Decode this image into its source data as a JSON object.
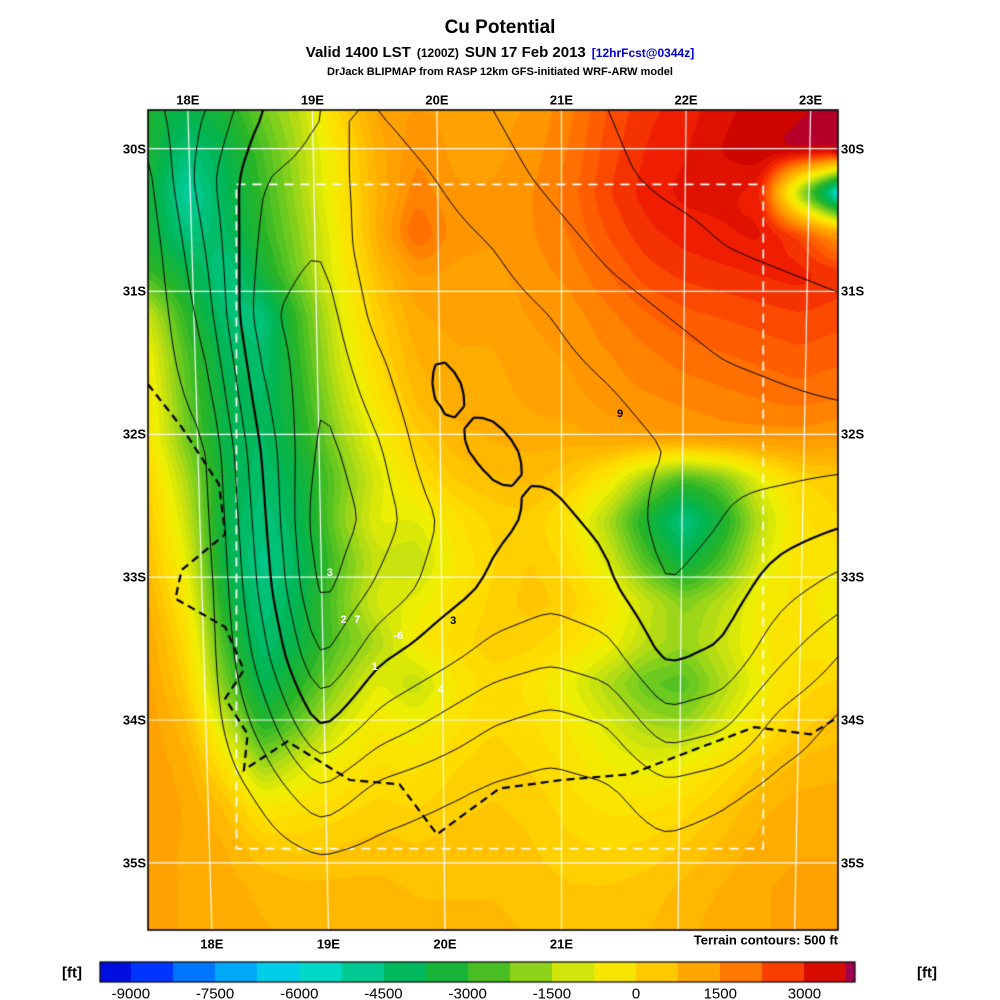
{
  "header": {
    "title": "Cu Potential",
    "valid_prefix": "Valid 1400 LST",
    "valid_zulu": "(1200Z)",
    "valid_date": "SUN 17 Feb 2013",
    "fcst_tag": "[12hrFcst@0344z]",
    "model_line": "DrJack BLIPMAP from RASP 12km GFS-initiated WRF-ARW model"
  },
  "colors": {
    "fcst_tag": "#0000CC",
    "contour": "#000000",
    "graticule": "#FFFFFF"
  },
  "chart_data": {
    "type": "heatmap",
    "title": "Cu Potential",
    "units": "ft",
    "lon_range": [
      17.68,
      23.22
    ],
    "lat_range": [
      -35.47,
      -29.73
    ],
    "x_ticks_top": {
      "lons": [
        18,
        19,
        20,
        21,
        22,
        23
      ],
      "labels": [
        "18E",
        "19E",
        "20E",
        "21E",
        "22E",
        "23E"
      ]
    },
    "x_ticks_bottom": {
      "lons": [
        18,
        19,
        20,
        21
      ],
      "labels": [
        "18E",
        "19E",
        "20E",
        "21E"
      ]
    },
    "y_ticks": {
      "lats": [
        -30,
        -31,
        -32,
        -33,
        -34,
        -35
      ],
      "labels": [
        "30S",
        "31S",
        "32S",
        "33S",
        "34S",
        "35S"
      ]
    },
    "domain_box": {
      "lon": [
        18.39,
        22.62
      ],
      "lat": [
        -34.9,
        -30.25
      ]
    },
    "terrain_note": "Terrain contours: 500 ft",
    "grid": {
      "values": [
        [
          -3300,
          -3800,
          -3300,
          -2200,
          -1300,
          200,
          1200,
          1400,
          1300,
          1300,
          1400,
          1800,
          2400,
          2800,
          3000,
          3300,
          3500,
          3600,
          3700
        ],
        [
          -3300,
          -4500,
          -3800,
          -2600,
          -1500,
          -200,
          1000,
          1600,
          1300,
          1300,
          1500,
          1900,
          2500,
          2900,
          3100,
          3400,
          3600,
          3700,
          3700
        ],
        [
          -3400,
          -5200,
          -4000,
          -2800,
          -1600,
          -300,
          900,
          1800,
          1400,
          1400,
          1600,
          2000,
          2600,
          3000,
          3200,
          3200,
          3000,
          -2000,
          -6300
        ],
        [
          -3400,
          -4600,
          -4200,
          -3000,
          -1800,
          -500,
          1000,
          2200,
          1500,
          1400,
          1600,
          1900,
          2400,
          2800,
          3000,
          3100,
          3200,
          2600,
          1400
        ],
        [
          -2800,
          -3600,
          -4800,
          -3400,
          -2000,
          -600,
          600,
          1400,
          1300,
          1300,
          1500,
          1700,
          2100,
          2500,
          2700,
          2800,
          2900,
          3000,
          2800
        ],
        [
          -1200,
          -3000,
          -4400,
          -4600,
          -2600,
          -900,
          300,
          1100,
          1200,
          1200,
          1400,
          1500,
          1800,
          2100,
          2300,
          2400,
          2500,
          2600,
          2500
        ],
        [
          -600,
          -2600,
          -4000,
          -4400,
          -2800,
          -1100,
          100,
          900,
          1100,
          1100,
          1300,
          1400,
          1600,
          1800,
          2000,
          2100,
          2200,
          2300,
          2200
        ],
        [
          -400,
          -2400,
          -3800,
          -4200,
          -3000,
          -1400,
          -200,
          700,
          1000,
          1000,
          1200,
          1300,
          1500,
          1600,
          1700,
          1800,
          1900,
          2000,
          1900
        ],
        [
          -300,
          -2200,
          -3800,
          -4200,
          -3200,
          -1800,
          -600,
          300,
          800,
          900,
          1000,
          1000,
          1200,
          1300,
          1400,
          1500,
          1500,
          1500,
          1400
        ],
        [
          200,
          -1600,
          -3600,
          -4400,
          -3600,
          -2200,
          -1000,
          -200,
          400,
          600,
          700,
          400,
          -400,
          -1800,
          -2800,
          -2200,
          -800,
          100,
          300
        ],
        [
          400,
          -1200,
          -3800,
          -4600,
          -3800,
          -2000,
          -800,
          -900,
          -200,
          200,
          300,
          -300,
          -1600,
          -3400,
          -4800,
          -3400,
          -1400,
          -200,
          100
        ],
        [
          600,
          -800,
          -3800,
          -4800,
          -4000,
          -2400,
          -1200,
          -1400,
          -400,
          100,
          400,
          0,
          -1000,
          -2600,
          -3800,
          -2600,
          -1000,
          -200,
          -400
        ],
        [
          900,
          -400,
          -3400,
          -4600,
          -3800,
          -2200,
          -1000,
          -800,
          -200,
          200,
          500,
          300,
          -300,
          -1200,
          -2000,
          -1400,
          -500,
          -300,
          -500
        ],
        [
          1100,
          0,
          -2800,
          -4400,
          -3600,
          -2400,
          -1600,
          -400,
          0,
          300,
          200,
          -100,
          -600,
          -1400,
          -1800,
          -1200,
          -400,
          -200,
          -400
        ],
        [
          1200,
          300,
          -2200,
          -4000,
          -3000,
          -1800,
          -800,
          -1400,
          -400,
          0,
          -200,
          -800,
          -1600,
          -2400,
          -2600,
          -1600,
          -600,
          0,
          200
        ],
        [
          1300,
          700,
          -1200,
          -3200,
          -2200,
          -1000,
          -400,
          -600,
          -200,
          100,
          -100,
          -400,
          -1000,
          -1600,
          -1800,
          -1000,
          -200,
          300,
          500
        ],
        [
          1300,
          1000,
          -200,
          -1800,
          -1000,
          -400,
          -100,
          -200,
          100,
          300,
          100,
          -200,
          -600,
          -800,
          -600,
          -100,
          400,
          700,
          800
        ],
        [
          1300,
          1100,
          600,
          -400,
          -200,
          0,
          200,
          100,
          300,
          400,
          300,
          0,
          -200,
          -200,
          0,
          400,
          800,
          1000,
          1000
        ],
        [
          1200,
          1100,
          900,
          400,
          300,
          400,
          500,
          400,
          500,
          500,
          400,
          200,
          100,
          200,
          400,
          700,
          1000,
          1100,
          1100
        ],
        [
          1200,
          1100,
          1000,
          800,
          700,
          700,
          700,
          600,
          600,
          600,
          500,
          400,
          400,
          500,
          700,
          900,
          1100,
          1200,
          1200
        ],
        [
          1200,
          1100,
          1000,
          900,
          800,
          800,
          800,
          700,
          700,
          700,
          600,
          500,
          500,
          600,
          800,
          1000,
          1100,
          1200,
          1200
        ]
      ]
    },
    "terrain": {
      "contour_interval_ft": 500,
      "max_contour_ft": 4500,
      "values": [
        [
          800,
          1500,
          2500,
          3000,
          3000,
          3200,
          3500,
          3800,
          4000,
          4200,
          4300,
          4400,
          4500
        ],
        [
          400,
          1800,
          3000,
          3200,
          2800,
          3000,
          3300,
          3600,
          3900,
          4100,
          4200,
          4300,
          4400
        ],
        [
          200,
          1500,
          3200,
          3500,
          2600,
          2800,
          3000,
          3300,
          3600,
          3800,
          4000,
          4100,
          4200
        ],
        [
          100,
          1200,
          3400,
          3800,
          2800,
          2600,
          2800,
          3000,
          3300,
          3500,
          3700,
          3800,
          3900
        ],
        [
          100,
          800,
          3000,
          4000,
          3200,
          2400,
          2600,
          2800,
          3000,
          3200,
          3400,
          3500,
          3600
        ],
        [
          100,
          400,
          2600,
          4200,
          3600,
          2600,
          2400,
          2600,
          2800,
          3000,
          3100,
          3200,
          3200
        ],
        [
          100,
          300,
          2400,
          4400,
          3800,
          3000,
          2600,
          2400,
          2600,
          3200,
          3000,
          2800,
          2600
        ],
        [
          100,
          200,
          2200,
          4200,
          3400,
          2800,
          2400,
          2200,
          2400,
          3000,
          2800,
          2200,
          1800
        ],
        [
          100,
          200,
          1800,
          3600,
          2600,
          2200,
          1800,
          1600,
          1800,
          2600,
          2400,
          1600,
          1000
        ],
        [
          100,
          200,
          1200,
          2600,
          1800,
          1400,
          1000,
          800,
          1000,
          1800,
          1600,
          800,
          400
        ],
        [
          100,
          100,
          600,
          1400,
          800,
          600,
          400,
          300,
          400,
          800,
          600,
          300,
          200
        ],
        [
          100,
          100,
          200,
          400,
          300,
          200,
          200,
          100,
          200,
          300,
          200,
          100,
          100
        ],
        [
          100,
          100,
          100,
          200,
          100,
          100,
          100,
          100,
          100,
          100,
          100,
          100,
          100
        ]
      ]
    },
    "coastline": [
      [
        17.68,
        -31.65
      ],
      [
        17.95,
        -31.95
      ],
      [
        18.25,
        -32.35
      ],
      [
        18.3,
        -32.7
      ],
      [
        17.95,
        -32.95
      ],
      [
        17.9,
        -33.15
      ],
      [
        18.3,
        -33.35
      ],
      [
        18.45,
        -33.65
      ],
      [
        18.3,
        -33.85
      ],
      [
        18.48,
        -34.1
      ],
      [
        18.45,
        -34.35
      ],
      [
        18.8,
        -34.15
      ],
      [
        19.3,
        -34.42
      ],
      [
        19.7,
        -34.45
      ],
      [
        20.0,
        -34.8
      ],
      [
        20.5,
        -34.48
      ],
      [
        21.0,
        -34.42
      ],
      [
        21.55,
        -34.38
      ],
      [
        22.15,
        -34.18
      ],
      [
        22.55,
        -34.05
      ],
      [
        23.0,
        -34.1
      ],
      [
        23.22,
        -33.98
      ]
    ],
    "contour_labels": [
      {
        "lon": 21.47,
        "lat": -31.86,
        "text": "9",
        "color": "#000000"
      },
      {
        "lon": 19.14,
        "lat": -32.97,
        "text": "3",
        "color": "#FFFFFF"
      },
      {
        "lon": 19.25,
        "lat": -33.3,
        "text": "2",
        "color": "#FFFFFF"
      },
      {
        "lon": 19.36,
        "lat": -33.3,
        "text": "7",
        "color": "#FFFFFF"
      },
      {
        "lon": 19.69,
        "lat": -33.41,
        "text": "-6",
        "color": "#FFFFFF"
      },
      {
        "lon": 19.5,
        "lat": -33.63,
        "text": "1",
        "color": "#FFFFFF"
      },
      {
        "lon": 20.03,
        "lat": -33.79,
        "text": "4",
        "color": "#FFFFFF"
      },
      {
        "lon": 20.13,
        "lat": -33.31,
        "text": "3",
        "color": "#000000"
      }
    ],
    "colorbar": {
      "min": -9550,
      "max": 3900,
      "tick_values": [
        -9000,
        -7500,
        -6000,
        -4500,
        -3000,
        -1500,
        0,
        1500,
        3000
      ],
      "tick_labels": [
        "-9000",
        "-7500",
        "-6000",
        "-4500",
        "-3000",
        "-1500",
        "0",
        "1500",
        "3000"
      ],
      "unit_label": "[ft]",
      "stops": [
        [
          -10500,
          "#000080"
        ],
        [
          -9000,
          "#0014FF"
        ],
        [
          -7500,
          "#0096FF"
        ],
        [
          -6000,
          "#00E1E1"
        ],
        [
          -4800,
          "#00C88C"
        ],
        [
          -3900,
          "#00B450"
        ],
        [
          -3000,
          "#28B428"
        ],
        [
          -2100,
          "#78CD1E"
        ],
        [
          -1500,
          "#B4DC14"
        ],
        [
          -700,
          "#F0F000"
        ],
        [
          0,
          "#FFDC00"
        ],
        [
          700,
          "#FFB900"
        ],
        [
          1500,
          "#FF9600"
        ],
        [
          2300,
          "#FF5A00"
        ],
        [
          3000,
          "#F01E00"
        ],
        [
          3600,
          "#C80000"
        ],
        [
          3900,
          "#A00050"
        ]
      ]
    }
  }
}
